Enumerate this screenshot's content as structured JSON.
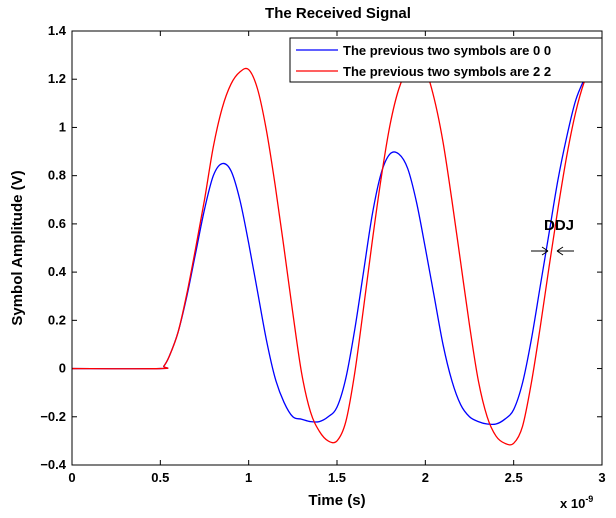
{
  "chart_data": {
    "type": "line",
    "title": "The Received Signal",
    "xlabel": "Time (s)",
    "ylabel": "Symbol Amplitude (V)",
    "x_exponent_label": "x 10",
    "x_exponent_power": "-9",
    "xlim": [
      0,
      3
    ],
    "ylim": [
      -0.4,
      1.4
    ],
    "x_ticks": [
      0,
      0.5,
      1,
      1.5,
      2,
      2.5,
      3
    ],
    "x_tick_labels": [
      "0",
      "0.5",
      "1",
      "1.5",
      "2",
      "2.5",
      "3"
    ],
    "y_ticks": [
      -0.4,
      -0.2,
      0,
      0.2,
      0.4,
      0.6,
      0.8,
      1,
      1.2,
      1.4
    ],
    "y_tick_labels": [
      "−0.4",
      "−0.2",
      "0",
      "0.2",
      "0.4",
      "0.6",
      "0.8",
      "1",
      "1.2",
      "1.4"
    ],
    "grid": false,
    "legend_position": "top-right",
    "series": [
      {
        "name": "The previous two symbols are 0 0",
        "color": "#0000ff",
        "x": [
          0,
          0.5,
          0.52,
          0.55,
          0.6,
          0.65,
          0.7,
          0.75,
          0.8,
          0.85,
          0.9,
          0.95,
          1.0,
          1.05,
          1.1,
          1.15,
          1.2,
          1.25,
          1.3,
          1.35,
          1.4,
          1.45,
          1.5,
          1.55,
          1.6,
          1.65,
          1.7,
          1.75,
          1.8,
          1.85,
          1.9,
          1.95,
          2.0,
          2.05,
          2.1,
          2.15,
          2.2,
          2.25,
          2.3,
          2.35,
          2.4,
          2.45,
          2.5,
          2.55,
          2.6,
          2.65,
          2.7,
          2.75,
          2.8,
          2.85,
          2.9,
          2.95,
          3.0
        ],
        "y": [
          0,
          0,
          0.01,
          0.05,
          0.15,
          0.3,
          0.48,
          0.66,
          0.8,
          0.85,
          0.82,
          0.7,
          0.52,
          0.32,
          0.12,
          -0.04,
          -0.14,
          -0.2,
          -0.21,
          -0.22,
          -0.22,
          -0.2,
          -0.16,
          -0.04,
          0.16,
          0.4,
          0.64,
          0.81,
          0.89,
          0.89,
          0.83,
          0.69,
          0.5,
          0.3,
          0.1,
          -0.05,
          -0.15,
          -0.2,
          -0.22,
          -0.23,
          -0.23,
          -0.21,
          -0.17,
          -0.06,
          0.12,
          0.34,
          0.56,
          0.78,
          0.96,
          1.11,
          1.2,
          1.27,
          1.3
        ]
      },
      {
        "name": "The previous two symbols are 2 2",
        "color": "#ff0000",
        "x": [
          0,
          0.5,
          0.52,
          0.55,
          0.6,
          0.65,
          0.7,
          0.75,
          0.8,
          0.85,
          0.9,
          0.95,
          1.0,
          1.05,
          1.1,
          1.15,
          1.2,
          1.25,
          1.3,
          1.35,
          1.4,
          1.45,
          1.5,
          1.55,
          1.6,
          1.65,
          1.7,
          1.75,
          1.8,
          1.85,
          1.9,
          1.95,
          2.0,
          2.05,
          2.1,
          2.15,
          2.2,
          2.25,
          2.3,
          2.35,
          2.4,
          2.45,
          2.5,
          2.55,
          2.6,
          2.65,
          2.7,
          2.75,
          2.8,
          2.85,
          2.9,
          2.95,
          3.0
        ],
        "y": [
          0,
          0,
          0.01,
          0.05,
          0.15,
          0.31,
          0.5,
          0.7,
          0.92,
          1.08,
          1.18,
          1.23,
          1.24,
          1.16,
          0.99,
          0.76,
          0.5,
          0.23,
          -0.02,
          -0.18,
          -0.26,
          -0.3,
          -0.3,
          -0.22,
          -0.02,
          0.25,
          0.53,
          0.79,
          1.01,
          1.16,
          1.24,
          1.26,
          1.24,
          1.12,
          0.94,
          0.7,
          0.44,
          0.18,
          -0.05,
          -0.2,
          -0.28,
          -0.31,
          -0.31,
          -0.24,
          -0.06,
          0.17,
          0.42,
          0.66,
          0.88,
          1.06,
          1.19,
          1.27,
          1.3
        ]
      }
    ],
    "annotations": [
      {
        "text": "DDJ",
        "x": 2.75,
        "y": 0.6
      }
    ]
  }
}
